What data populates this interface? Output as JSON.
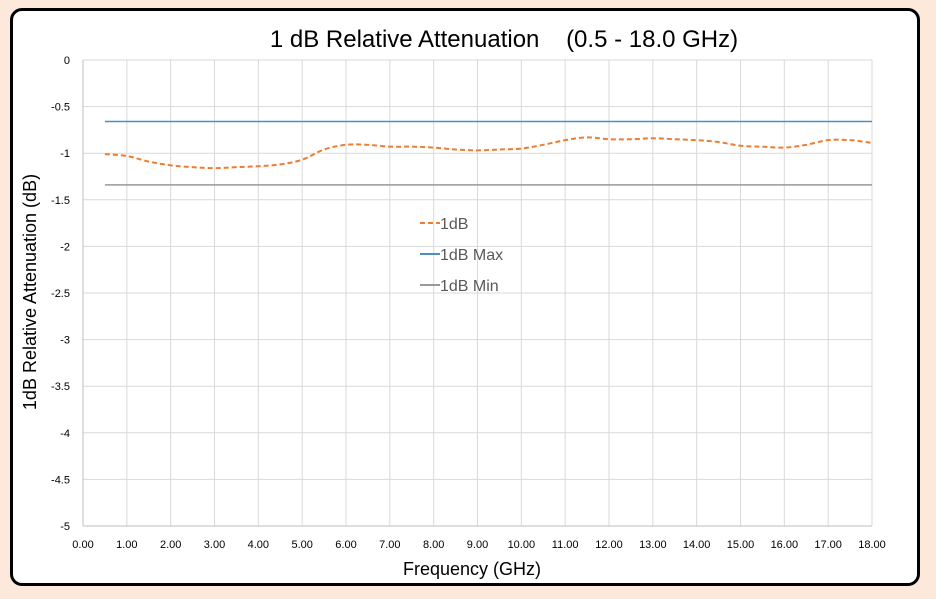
{
  "chart_data": {
    "type": "line",
    "title": "1 dB Relative Attenuation    (0.5 - 18.0 GHz)",
    "xlabel": "Frequency (GHz)",
    "ylabel": "1dB Relative Attenuation (dB)",
    "xlim": [
      0,
      18
    ],
    "ylim": [
      -5,
      0
    ],
    "x_ticks": [
      "0.00",
      "1.00",
      "2.00",
      "3.00",
      "4.00",
      "5.00",
      "6.00",
      "7.00",
      "8.00",
      "9.00",
      "10.00",
      "11.00",
      "12.00",
      "13.00",
      "14.00",
      "15.00",
      "16.00",
      "17.00",
      "18.00"
    ],
    "y_ticks": [
      "0",
      "-0.5",
      "-1",
      "-1.5",
      "-2",
      "-2.5",
      "-3",
      "-3.5",
      "-4",
      "-4.5",
      "-5"
    ],
    "grid": true,
    "legend_position": "center-left",
    "series": [
      {
        "name": "1dB",
        "color": "#ed7d31",
        "style": "dashed",
        "x": [
          0.5,
          1.0,
          1.5,
          2.0,
          2.5,
          3.0,
          3.5,
          4.0,
          4.5,
          5.0,
          5.5,
          6.0,
          6.5,
          7.0,
          7.5,
          8.0,
          8.5,
          9.0,
          9.5,
          10.0,
          10.5,
          11.0,
          11.5,
          12.0,
          12.5,
          13.0,
          13.5,
          14.0,
          14.5,
          15.0,
          15.5,
          16.0,
          16.5,
          17.0,
          17.5,
          18.0
        ],
        "y": [
          -1.01,
          -1.03,
          -1.09,
          -1.13,
          -1.15,
          -1.16,
          -1.15,
          -1.14,
          -1.12,
          -1.07,
          -0.96,
          -0.91,
          -0.91,
          -0.93,
          -0.93,
          -0.94,
          -0.96,
          -0.97,
          -0.96,
          -0.95,
          -0.91,
          -0.86,
          -0.83,
          -0.85,
          -0.85,
          -0.84,
          -0.85,
          -0.86,
          -0.88,
          -0.92,
          -0.93,
          -0.94,
          -0.91,
          -0.86,
          -0.86,
          -0.89
        ]
      },
      {
        "name": "1dB Max",
        "color": "#4e8fbf",
        "style": "solid",
        "x": [
          0.5,
          18.0
        ],
        "y": [
          -0.66,
          -0.66
        ]
      },
      {
        "name": "1dB Min",
        "color": "#999999",
        "style": "solid",
        "x": [
          0.5,
          18.0
        ],
        "y": [
          -1.34,
          -1.34
        ]
      }
    ]
  }
}
